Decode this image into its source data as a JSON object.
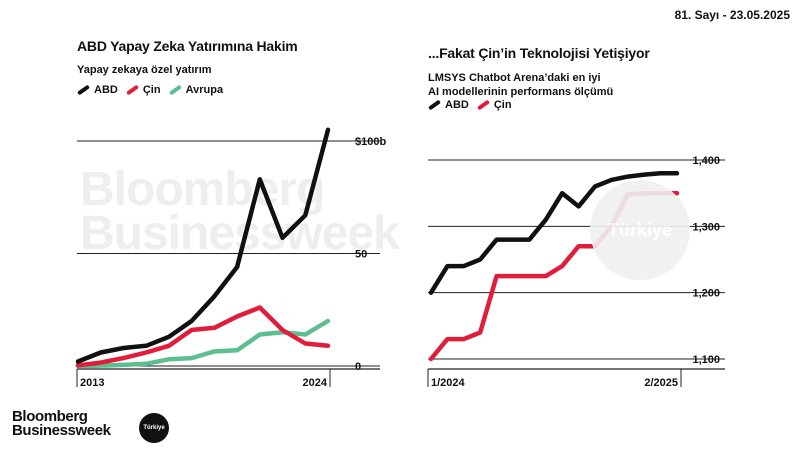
{
  "header": {
    "issue": "81. Sayı - 23.05.2025"
  },
  "watermark": {
    "line1": "Bloomberg",
    "line2": "Businessweek",
    "badge": "Türkiye"
  },
  "logo": {
    "line1": "Bloomberg",
    "line2": "Businessweek",
    "badge": "Türkiye"
  },
  "colors": {
    "abd": "#111111",
    "cin": "#e01e3c",
    "avrupa": "#5dbf90",
    "grid": "#222222",
    "watermark": "#eeeeee"
  },
  "chart_data": [
    {
      "type": "line",
      "title": "ABD Yapay Zeka Yatırımına Hakim",
      "subtitle": "Yapay zekaya özel yatırım",
      "x": [
        2013,
        2014,
        2015,
        2016,
        2017,
        2018,
        2019,
        2020,
        2021,
        2022,
        2023,
        2024
      ],
      "x_tick_labels": [
        "2013",
        "2024"
      ],
      "y_tick_labels": [
        "$100b",
        "50",
        "0"
      ],
      "ylim": [
        0,
        100
      ],
      "series": [
        {
          "name": "ABD",
          "color": "#111111",
          "values": [
            2,
            6,
            8,
            9,
            13,
            20,
            31,
            44,
            83,
            57,
            67,
            105
          ]
        },
        {
          "name": "Çin",
          "color": "#e01e3c",
          "values": [
            0.3,
            1.5,
            3.5,
            6,
            9,
            16,
            17,
            22,
            26,
            16,
            10,
            9
          ]
        },
        {
          "name": "Avrupa",
          "color": "#5dbf90",
          "values": [
            0,
            0.2,
            0.5,
            1,
            3,
            3.5,
            6.5,
            7,
            14,
            15,
            14,
            20
          ]
        }
      ]
    },
    {
      "type": "line",
      "title": "...Fakat Çin’in Teknolojisi Yetişiyor",
      "subtitle_line1": "LMSYS Chatbot Arena’daki en iyi",
      "subtitle_line2": "AI modellerinin performans ölçümü",
      "x": [
        1,
        2,
        3,
        4,
        5,
        6,
        7,
        8,
        9,
        10,
        11,
        12,
        13,
        14,
        15,
        16
      ],
      "x_tick_labels": [
        "1/2024",
        "2/2025"
      ],
      "y_tick_labels": [
        "1,400",
        "1,300",
        "1,200",
        "1,100"
      ],
      "ylim": [
        1100,
        1400
      ],
      "series": [
        {
          "name": "ABD",
          "color": "#111111",
          "values": [
            1200,
            1240,
            1240,
            1250,
            1280,
            1280,
            1280,
            1310,
            1350,
            1330,
            1360,
            1370,
            1375,
            1378,
            1380,
            1380
          ]
        },
        {
          "name": "Çin",
          "color": "#e01e3c",
          "values": [
            1100,
            1130,
            1130,
            1140,
            1225,
            1225,
            1225,
            1225,
            1240,
            1270,
            1270,
            1300,
            1348,
            1350,
            1350,
            1350
          ]
        }
      ]
    }
  ]
}
